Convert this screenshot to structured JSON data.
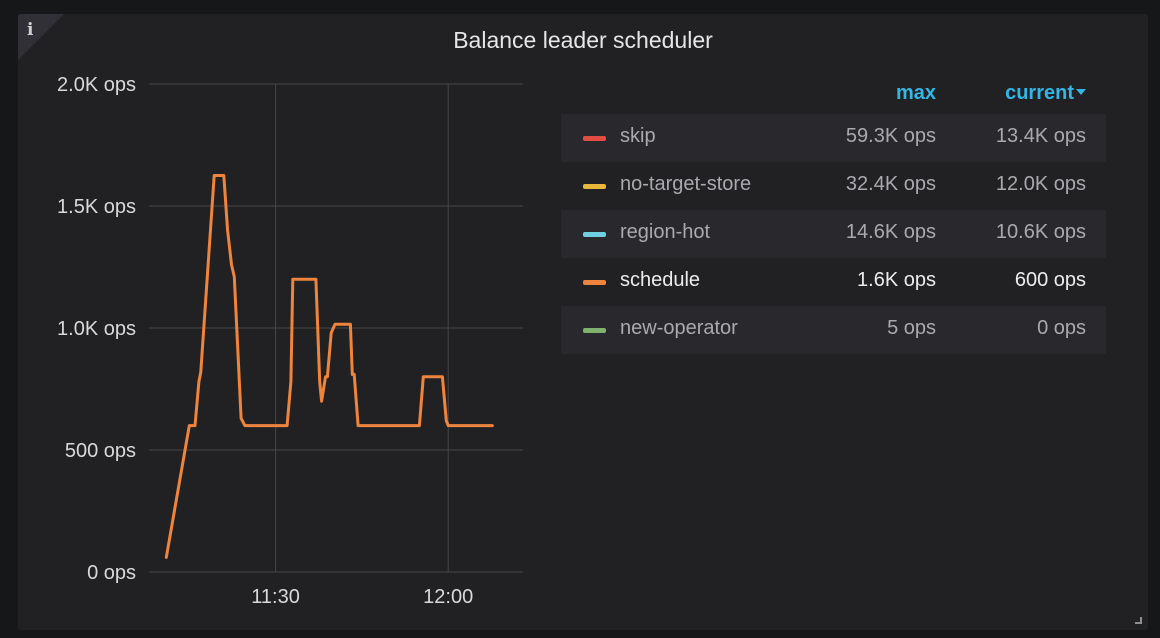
{
  "panel": {
    "title": "Balance leader scheduler",
    "info_icon": "info-icon",
    "info_glyph": "i"
  },
  "legend": {
    "columns": {
      "max": "max",
      "current": "current"
    },
    "sorted_by": "current",
    "rows": [
      {
        "name": "skip",
        "max": "59.3K ops",
        "current": "13.4K ops",
        "color": "#e24d42",
        "active": false
      },
      {
        "name": "no-target-store",
        "max": "32.4K ops",
        "current": "12.0K ops",
        "color": "#eab839",
        "active": false
      },
      {
        "name": "region-hot",
        "max": "14.6K ops",
        "current": "10.6K ops",
        "color": "#6ed0e0",
        "active": false
      },
      {
        "name": "schedule",
        "max": "1.6K ops",
        "current": "600 ops",
        "color": "#ef843c",
        "active": true
      },
      {
        "name": "new-operator",
        "max": "5 ops",
        "current": "0 ops",
        "color": "#7eb26d",
        "active": false
      }
    ]
  },
  "chart_data": {
    "type": "line",
    "title": "Balance leader scheduler",
    "xlabel": "",
    "ylabel": "",
    "x_unit": "time (HH:MM)",
    "xlim": [
      "11:08",
      "12:13"
    ],
    "ylim": [
      0,
      2000
    ],
    "y_ticks": [
      {
        "value": 0,
        "label": "0 ops"
      },
      {
        "value": 500,
        "label": "500 ops"
      },
      {
        "value": 1000,
        "label": "1.0K ops"
      },
      {
        "value": 1500,
        "label": "1.5K ops"
      },
      {
        "value": 2000,
        "label": "2.0K ops"
      }
    ],
    "x_ticks": [
      {
        "value": "11:30",
        "label": "11:30"
      },
      {
        "value": "12:00",
        "label": "12:00"
      }
    ],
    "grid": true,
    "series": [
      {
        "name": "schedule",
        "color": "#ef843c",
        "points": [
          [
            "11:11:00",
            60
          ],
          [
            "11:15:00",
            600
          ],
          [
            "11:16:00",
            600
          ],
          [
            "11:16:40",
            780
          ],
          [
            "11:17:00",
            820
          ],
          [
            "11:19:20",
            1625
          ],
          [
            "11:21:00",
            1625
          ],
          [
            "11:21:40",
            1400
          ],
          [
            "11:22:20",
            1260
          ],
          [
            "11:22:50",
            1210
          ],
          [
            "11:24:00",
            630
          ],
          [
            "11:24:40",
            600
          ],
          [
            "11:32:00",
            600
          ],
          [
            "11:32:40",
            780
          ],
          [
            "11:33:00",
            1200
          ],
          [
            "11:37:00",
            1200
          ],
          [
            "11:37:40",
            780
          ],
          [
            "11:38:00",
            700
          ],
          [
            "11:38:40",
            800
          ],
          [
            "11:39:00",
            800
          ],
          [
            "11:39:40",
            980
          ],
          [
            "11:40:20",
            1015
          ],
          [
            "11:43:00",
            1015
          ],
          [
            "11:43:20",
            810
          ],
          [
            "11:43:40",
            810
          ],
          [
            "11:44:20",
            600
          ],
          [
            "11:55:00",
            600
          ],
          [
            "11:55:40",
            800
          ],
          [
            "11:59:00",
            800
          ],
          [
            "11:59:40",
            620
          ],
          [
            "12:00:00",
            600
          ],
          [
            "12:07:40",
            600
          ]
        ]
      }
    ]
  }
}
